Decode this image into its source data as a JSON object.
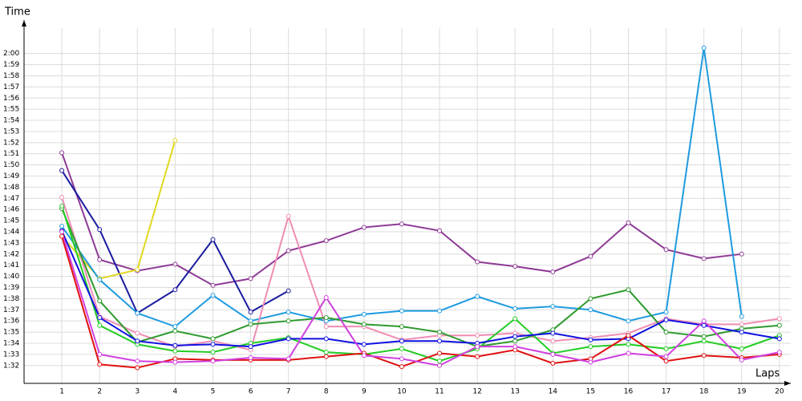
{
  "chart_data": {
    "type": "line",
    "y_label": "Time",
    "x_label": "Laps",
    "x": [
      1,
      2,
      3,
      4,
      5,
      6,
      7,
      8,
      9,
      10,
      11,
      12,
      13,
      14,
      15,
      16,
      17,
      18,
      19,
      20
    ],
    "xlim": [
      0,
      20.3
    ],
    "xticks": [
      1,
      2,
      3,
      4,
      5,
      6,
      7,
      8,
      9,
      10,
      11,
      12,
      13,
      14,
      15,
      16,
      17,
      18,
      19,
      20
    ],
    "ylim": [
      90.4,
      123.0
    ],
    "yticks": [
      {
        "value": 92,
        "label": "1:32"
      },
      {
        "value": 93,
        "label": "1:33"
      },
      {
        "value": 94,
        "label": "1:34"
      },
      {
        "value": 95,
        "label": "1:35"
      },
      {
        "value": 96,
        "label": "1:36"
      },
      {
        "value": 97,
        "label": "1:37"
      },
      {
        "value": 98,
        "label": "1:38"
      },
      {
        "value": 99,
        "label": "1:39"
      },
      {
        "value": 100,
        "label": "1:40"
      },
      {
        "value": 101,
        "label": "1:41"
      },
      {
        "value": 102,
        "label": "1:42"
      },
      {
        "value": 103,
        "label": "1:43"
      },
      {
        "value": 104,
        "label": "1:44"
      },
      {
        "value": 105,
        "label": "1:45"
      },
      {
        "value": 106,
        "label": "1:46"
      },
      {
        "value": 107,
        "label": "1:47"
      },
      {
        "value": 108,
        "label": "1:48"
      },
      {
        "value": 109,
        "label": "1:49"
      },
      {
        "value": 110,
        "label": "1:50"
      },
      {
        "value": 111,
        "label": "1:51"
      },
      {
        "value": 112,
        "label": "1:52"
      },
      {
        "value": 113,
        "label": "1:53"
      },
      {
        "value": 114,
        "label": "1:54"
      },
      {
        "value": 115,
        "label": "1:55"
      },
      {
        "value": 116,
        "label": "1:56"
      },
      {
        "value": 117,
        "label": "1:57"
      },
      {
        "value": 118,
        "label": "1:58"
      },
      {
        "value": 119,
        "label": "1:59"
      },
      {
        "value": 120,
        "label": "2:00"
      }
    ],
    "grid": true,
    "series": [
      {
        "color": "#8e3a96",
        "values": [
          111.1,
          101.5,
          100.5,
          101.1,
          99.2,
          99.8,
          102.3,
          103.2,
          104.4,
          104.7,
          104.1,
          101.3,
          100.9,
          100.4,
          101.8,
          104.8,
          102.4,
          101.6,
          102.0,
          null
        ]
      },
      {
        "color": "#1a1aa0",
        "values": [
          109.5,
          104.2,
          96.7,
          98.8,
          103.3,
          96.8,
          98.7,
          null,
          null,
          null,
          null,
          null,
          null,
          null,
          null,
          null,
          null,
          null,
          null,
          null
        ]
      },
      {
        "color": "#e0d820",
        "values": [
          103.6,
          99.8,
          100.6,
          112.2,
          null,
          null,
          null,
          null,
          null,
          null,
          null,
          null,
          null,
          null,
          null,
          null,
          null,
          null,
          null,
          null
        ]
      },
      {
        "color": "#1e9be0",
        "values": [
          104.5,
          99.7,
          96.7,
          95.5,
          98.3,
          96.0,
          96.8,
          96.0,
          96.6,
          96.9,
          96.9,
          98.2,
          97.1,
          97.3,
          97.0,
          96.0,
          96.8,
          120.5,
          96.4,
          null
        ]
      },
      {
        "color": "#f08cb4",
        "values": [
          107.1,
          96.4,
          94.9,
          93.7,
          94.2,
          93.4,
          105.4,
          95.5,
          95.5,
          94.3,
          94.7,
          94.7,
          94.9,
          94.2,
          94.5,
          94.9,
          96.2,
          95.7,
          95.7,
          96.2
        ]
      },
      {
        "color": "#2e9a2e",
        "values": [
          106.1,
          97.8,
          94.1,
          95.1,
          94.4,
          95.7,
          96.0,
          96.3,
          95.7,
          95.5,
          95.0,
          93.7,
          94.2,
          95.2,
          98.0,
          98.8,
          95.0,
          94.6,
          95.3,
          95.6
        ]
      },
      {
        "color": "#22cc22",
        "values": [
          106.3,
          95.6,
          93.9,
          93.3,
          93.2,
          94.0,
          94.5,
          93.2,
          93.0,
          93.5,
          92.4,
          93.5,
          96.2,
          93.1,
          93.7,
          93.9,
          93.5,
          94.2,
          93.5,
          94.7
        ]
      },
      {
        "color": "#1010e0",
        "values": [
          104.1,
          96.3,
          94.2,
          93.8,
          93.9,
          93.7,
          94.4,
          94.4,
          93.9,
          94.2,
          94.2,
          94.0,
          94.6,
          94.9,
          94.3,
          94.4,
          96.1,
          95.6,
          95.0,
          94.4
        ]
      },
      {
        "color": "#e01010",
        "values": [
          103.6,
          92.1,
          91.8,
          92.6,
          92.5,
          92.5,
          92.5,
          92.8,
          93.1,
          91.9,
          93.1,
          92.8,
          93.4,
          92.2,
          92.6,
          94.7,
          92.4,
          92.9,
          92.7,
          93.0
        ]
      },
      {
        "color": "#d040e0",
        "values": [
          104.0,
          93.0,
          92.4,
          92.3,
          92.4,
          92.7,
          92.6,
          98.1,
          92.9,
          92.6,
          92.0,
          93.7,
          93.7,
          93.0,
          92.3,
          93.1,
          92.8,
          96.0,
          92.5,
          93.2
        ]
      }
    ]
  }
}
